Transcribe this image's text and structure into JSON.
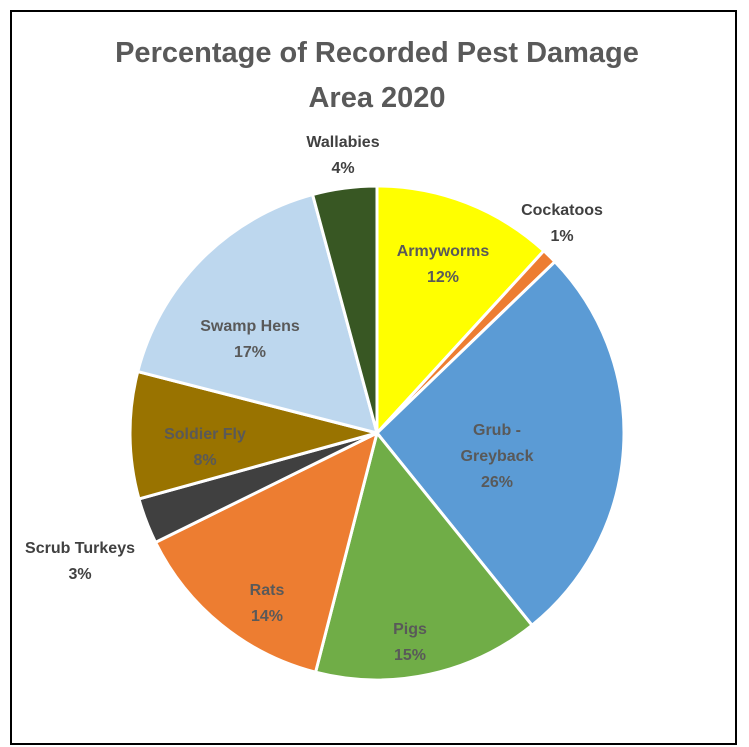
{
  "chart_data": {
    "type": "pie",
    "title_lines": [
      "Percentage of Recorded Pest Damage",
      "Area 2020"
    ],
    "slices": [
      {
        "name": "Armyworms",
        "label_lines": [
          "Armyworms"
        ],
        "pct_label": "12%",
        "value": 11.8,
        "color": "#FFFF00"
      },
      {
        "name": "Cockatoos",
        "label_lines": [
          "Cockatoos"
        ],
        "pct_label": "1%",
        "value": 1.0,
        "color": "#ED7D31"
      },
      {
        "name": "Grub - Greyback",
        "label_lines": [
          "Grub -",
          "Greyback"
        ],
        "pct_label": "26%",
        "value": 26.4,
        "color": "#5B9BD5"
      },
      {
        "name": "Pigs",
        "label_lines": [
          "Pigs"
        ],
        "pct_label": "15%",
        "value": 14.8,
        "color": "#70AD47"
      },
      {
        "name": "Rats",
        "label_lines": [
          "Rats"
        ],
        "pct_label": "14%",
        "value": 13.7,
        "color": "#ED7D31"
      },
      {
        "name": "Scrub Turkeys",
        "label_lines": [
          "Scrub Turkeys"
        ],
        "pct_label": "3%",
        "value": 3.0,
        "color": "#404040"
      },
      {
        "name": "Soldier Fly",
        "label_lines": [
          "Soldier Fly"
        ],
        "pct_label": "8%",
        "value": 8.3,
        "color": "#997300"
      },
      {
        "name": "Swamp Hens",
        "label_lines": [
          "Swamp Hens"
        ],
        "pct_label": "17%",
        "value": 16.8,
        "color": "#BDD7EE"
      },
      {
        "name": "Wallabies",
        "label_lines": [
          "Wallabies"
        ],
        "pct_label": "4%",
        "value": 4.2,
        "color": "#385723"
      }
    ],
    "label_colors": {
      "inside_dark": "#595959",
      "inside_light": "#404040",
      "outside": "#404040"
    }
  }
}
